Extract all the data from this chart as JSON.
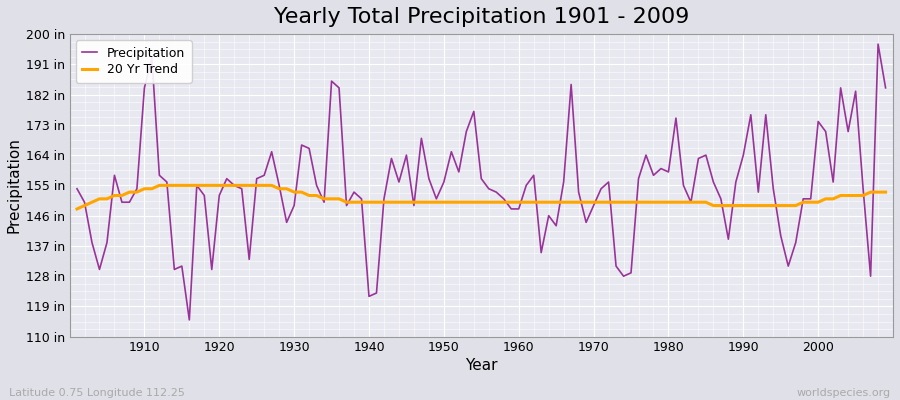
{
  "title": "Yearly Total Precipitation 1901 - 2009",
  "xlabel": "Year",
  "ylabel": "Precipitation",
  "subtitle": "Latitude 0.75 Longitude 112.25",
  "watermark": "worldspecies.org",
  "years": [
    1901,
    1902,
    1903,
    1904,
    1905,
    1906,
    1907,
    1908,
    1909,
    1910,
    1911,
    1912,
    1913,
    1914,
    1915,
    1916,
    1917,
    1918,
    1919,
    1920,
    1921,
    1922,
    1923,
    1924,
    1925,
    1926,
    1927,
    1928,
    1929,
    1930,
    1931,
    1932,
    1933,
    1934,
    1935,
    1936,
    1937,
    1938,
    1939,
    1940,
    1941,
    1942,
    1943,
    1944,
    1945,
    1946,
    1947,
    1948,
    1949,
    1950,
    1951,
    1952,
    1953,
    1954,
    1955,
    1956,
    1957,
    1958,
    1959,
    1960,
    1961,
    1962,
    1963,
    1964,
    1965,
    1966,
    1967,
    1968,
    1969,
    1970,
    1971,
    1972,
    1973,
    1974,
    1975,
    1976,
    1977,
    1978,
    1979,
    1980,
    1981,
    1982,
    1983,
    1984,
    1985,
    1986,
    1987,
    1988,
    1989,
    1990,
    1991,
    1992,
    1993,
    1994,
    1995,
    1996,
    1997,
    1998,
    1999,
    2000,
    2001,
    2002,
    2003,
    2004,
    2005,
    2006,
    2007,
    2008,
    2009
  ],
  "precip": [
    154,
    150,
    138,
    130,
    138,
    158,
    150,
    150,
    154,
    184,
    193,
    158,
    156,
    130,
    131,
    115,
    155,
    152,
    130,
    152,
    157,
    155,
    154,
    133,
    157,
    158,
    165,
    155,
    144,
    149,
    167,
    166,
    155,
    150,
    186,
    184,
    149,
    153,
    151,
    122,
    123,
    151,
    163,
    156,
    164,
    149,
    169,
    157,
    151,
    156,
    165,
    159,
    171,
    177,
    157,
    154,
    153,
    151,
    148,
    148,
    155,
    158,
    135,
    146,
    143,
    156,
    185,
    153,
    144,
    149,
    154,
    156,
    131,
    128,
    129,
    157,
    164,
    158,
    160,
    159,
    175,
    155,
    150,
    163,
    164,
    156,
    151,
    139,
    156,
    164,
    176,
    153,
    176,
    154,
    140,
    131,
    138,
    151,
    151,
    174,
    171,
    156,
    184,
    171,
    183,
    154,
    128,
    197,
    184
  ],
  "trend": [
    148,
    149,
    150,
    151,
    151,
    152,
    152,
    153,
    153,
    154,
    154,
    155,
    155,
    155,
    155,
    155,
    155,
    155,
    155,
    155,
    155,
    155,
    155,
    155,
    155,
    155,
    155,
    154,
    154,
    153,
    153,
    152,
    152,
    151,
    151,
    151,
    150,
    150,
    150,
    150,
    150,
    150,
    150,
    150,
    150,
    150,
    150,
    150,
    150,
    150,
    150,
    150,
    150,
    150,
    150,
    150,
    150,
    150,
    150,
    150,
    150,
    150,
    150,
    150,
    150,
    150,
    150,
    150,
    150,
    150,
    150,
    150,
    150,
    150,
    150,
    150,
    150,
    150,
    150,
    150,
    150,
    150,
    150,
    150,
    150,
    149,
    149,
    149,
    149,
    149,
    149,
    149,
    149,
    149,
    149,
    149,
    149,
    150,
    150,
    150,
    151,
    151,
    152,
    152,
    152,
    152,
    153,
    153,
    153
  ],
  "precip_color": "#993399",
  "trend_color": "#FFA500",
  "bg_color": "#E0E0E8",
  "plot_bg_color": "#E8E8F0",
  "grid_color": "#FFFFFF",
  "ylim": [
    110,
    200
  ],
  "yticks": [
    110,
    119,
    128,
    137,
    146,
    155,
    164,
    173,
    182,
    191,
    200
  ],
  "xticks": [
    1910,
    1920,
    1930,
    1940,
    1950,
    1960,
    1970,
    1980,
    1990,
    2000
  ],
  "title_fontsize": 16,
  "tick_fontsize": 9,
  "label_fontsize": 11
}
